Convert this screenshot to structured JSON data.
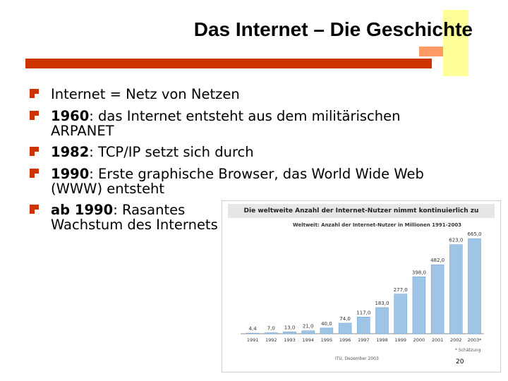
{
  "slide": {
    "title": "Das Internet – Die Geschichte",
    "bullets": [
      {
        "bold": "",
        "text": "Internet = Netz von Netzen",
        "cont": ""
      },
      {
        "bold": "1960",
        "text": ": das Internet entsteht aus dem militärischen",
        "cont": "ARPANET"
      },
      {
        "bold": "1982",
        "text": ": TCP/IP setzt sich durch",
        "cont": ""
      },
      {
        "bold": "1990",
        "text": ": Erste graphische Browser, das World Wide Web",
        "cont": "(WWW) entsteht"
      },
      {
        "bold": "ab 1990",
        "text": ": Rasantes",
        "cont": "Wachstum des Internets"
      }
    ],
    "number": "20"
  },
  "chart_data": {
    "type": "bar",
    "title": "Die weltweite Anzahl der Internet-Nutzer nimmt kontinuierlich zu",
    "subtitle": "Weltweit: Anzahl der Internet-Nutzer in Millionen 1991-2003",
    "categories": [
      "1991",
      "1992",
      "1993",
      "1994",
      "1995",
      "1996",
      "1997",
      "1998",
      "1999",
      "2000",
      "2001",
      "2002",
      "2003*"
    ],
    "values": [
      4.4,
      7.0,
      13.0,
      21.0,
      40.0,
      74.0,
      117.0,
      183.0,
      277.0,
      398.0,
      482.0,
      623.0,
      665.0
    ],
    "value_labels": [
      "4,4",
      "7,0",
      "13,0",
      "21,0",
      "40,0",
      "74,0",
      "117,0",
      "183,0",
      "277,0",
      "398,0",
      "482,0",
      "623,0",
      "665,0"
    ],
    "ylim": [
      0,
      700
    ],
    "note": "* Schätzung",
    "source": "ITU, Dezember 2003",
    "bar_color": "#9ec4e6"
  }
}
